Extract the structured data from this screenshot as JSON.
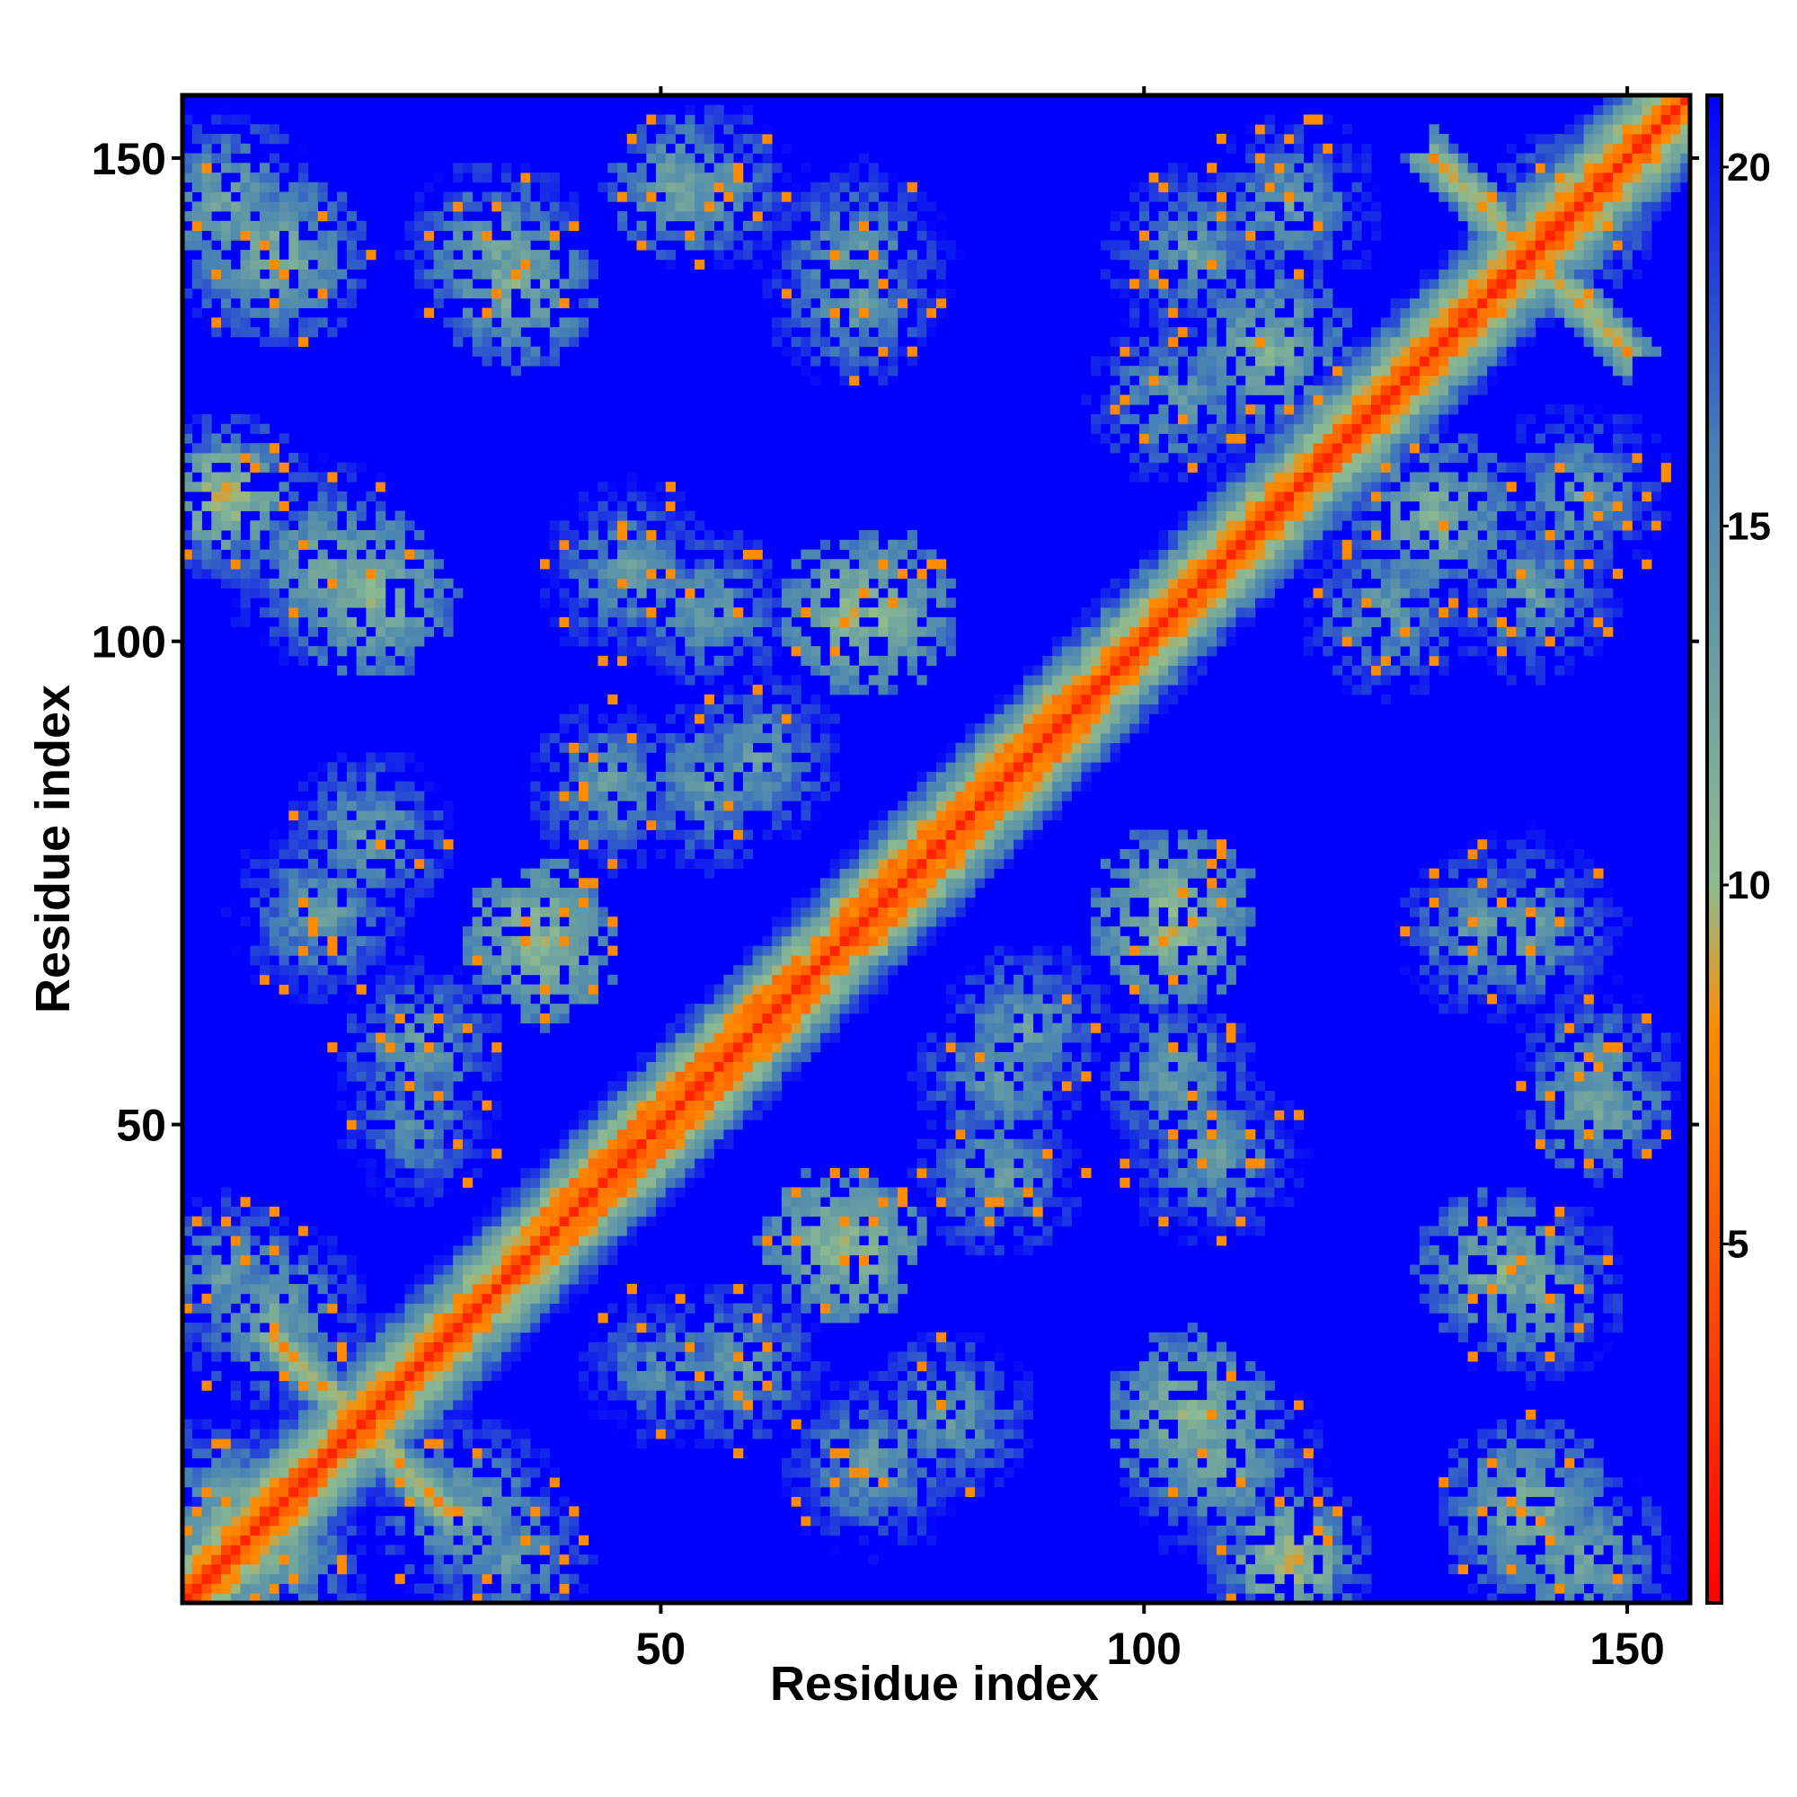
{
  "chart_data": {
    "type": "heatmap",
    "title": "",
    "xlabel": "Residue index",
    "ylabel": "Residue index",
    "n_residues": 156,
    "xlim": [
      1,
      156
    ],
    "ylim": [
      1,
      156
    ],
    "x_ticks": [
      50,
      100,
      150
    ],
    "y_ticks": [
      50,
      100,
      150
    ],
    "colorbar": {
      "range": [
        0,
        21
      ],
      "ticks": [
        5,
        10,
        15,
        20
      ],
      "colors": [
        "#ff0000",
        "#ff8c00",
        "#8fbc8f",
        "#4682b4",
        "#0000ff"
      ],
      "stops": [
        0,
        8,
        10,
        16,
        21
      ]
    },
    "cap_value": 21,
    "features": [
      {
        "kind": "main-diagonal",
        "from": 1,
        "to": 156,
        "value": 2
      },
      {
        "kind": "helix-band",
        "from": 38,
        "to": 64,
        "value": 6,
        "halfwidth": 3
      },
      {
        "kind": "helix-band",
        "from": 68,
        "to": 92,
        "value": 6,
        "halfwidth": 3
      },
      {
        "kind": "helix-band",
        "from": 98,
        "to": 130,
        "value": 7,
        "halfwidth": 2
      },
      {
        "kind": "anti-diagonal",
        "sum": 38,
        "from": 10,
        "to": 28,
        "value": 7
      },
      {
        "kind": "anti-diagonal",
        "sum": 280,
        "from": 130,
        "to": 150,
        "value": 7
      },
      {
        "kind": "contact-patch",
        "x": 5,
        "y": 145,
        "r": 10,
        "value": 10
      },
      {
        "kind": "contact-patch",
        "x": 33,
        "y": 140,
        "r": 10,
        "value": 10
      },
      {
        "kind": "contact-patch",
        "x": 55,
        "y": 147,
        "r": 9,
        "value": 11
      },
      {
        "kind": "contact-patch",
        "x": 70,
        "y": 135,
        "r": 9,
        "value": 11
      },
      {
        "kind": "contact-patch",
        "x": 15,
        "y": 108,
        "r": 11,
        "value": 10
      },
      {
        "kind": "contact-patch",
        "x": 47,
        "y": 107,
        "r": 10,
        "value": 11
      },
      {
        "kind": "contact-patch",
        "x": 70,
        "y": 103,
        "r": 8,
        "value": 8
      },
      {
        "kind": "contact-patch",
        "x": 20,
        "y": 80,
        "r": 9,
        "value": 11
      },
      {
        "kind": "contact-patch",
        "x": 37,
        "y": 70,
        "r": 8,
        "value": 8
      },
      {
        "kind": "contact-patch",
        "x": 55,
        "y": 85,
        "r": 9,
        "value": 11
      },
      {
        "kind": "contact-patch",
        "x": 25,
        "y": 50,
        "r": 9,
        "value": 12
      },
      {
        "kind": "contact-patch",
        "x": 10,
        "y": 30,
        "r": 10,
        "value": 10
      },
      {
        "kind": "contact-patch",
        "x": 10,
        "y": 5,
        "r": 10,
        "value": 10
      },
      {
        "kind": "contact-patch",
        "x": 35,
        "y": 5,
        "r": 8,
        "value": 11
      },
      {
        "kind": "contact-patch",
        "x": 58,
        "y": 25,
        "r": 9,
        "value": 11
      },
      {
        "kind": "contact-patch",
        "x": 68,
        "y": 38,
        "r": 8,
        "value": 8
      },
      {
        "kind": "contact-patch",
        "x": 72,
        "y": 15,
        "r": 10,
        "value": 11
      },
      {
        "kind": "contact-patch",
        "x": 85,
        "y": 45,
        "r": 9,
        "value": 11
      },
      {
        "kind": "contact-patch",
        "x": 88,
        "y": 60,
        "r": 9,
        "value": 11
      },
      {
        "kind": "contact-patch",
        "x": 103,
        "y": 72,
        "r": 9,
        "value": 8
      },
      {
        "kind": "contact-patch",
        "x": 103,
        "y": 55,
        "r": 9,
        "value": 11
      },
      {
        "kind": "contact-patch",
        "x": 105,
        "y": 20,
        "r": 9,
        "value": 8
      },
      {
        "kind": "contact-patch",
        "x": 115,
        "y": 5,
        "r": 9,
        "value": 10
      },
      {
        "kind": "contact-patch",
        "x": 140,
        "y": 10,
        "r": 10,
        "value": 9
      },
      {
        "kind": "contact-patch",
        "x": 137,
        "y": 35,
        "r": 9,
        "value": 9
      },
      {
        "kind": "contact-patch",
        "x": 147,
        "y": 52,
        "r": 8,
        "value": 10
      },
      {
        "kind": "contact-patch",
        "x": 140,
        "y": 70,
        "r": 11,
        "value": 11
      },
      {
        "kind": "contact-patch",
        "x": 105,
        "y": 140,
        "r": 10,
        "value": 11
      },
      {
        "kind": "contact-patch",
        "x": 113,
        "y": 130,
        "r": 9,
        "value": 9
      },
      {
        "kind": "contact-patch",
        "x": 125,
        "y": 103,
        "r": 9,
        "value": 11
      },
      {
        "kind": "contact-patch",
        "x": 145,
        "y": 115,
        "r": 10,
        "value": 11
      },
      {
        "kind": "contact-patch",
        "x": 145,
        "y": 143,
        "r": 8,
        "value": 11
      },
      {
        "kind": "contact-patch",
        "x": 5,
        "y": 115,
        "r": 5,
        "value": 7
      }
    ]
  }
}
